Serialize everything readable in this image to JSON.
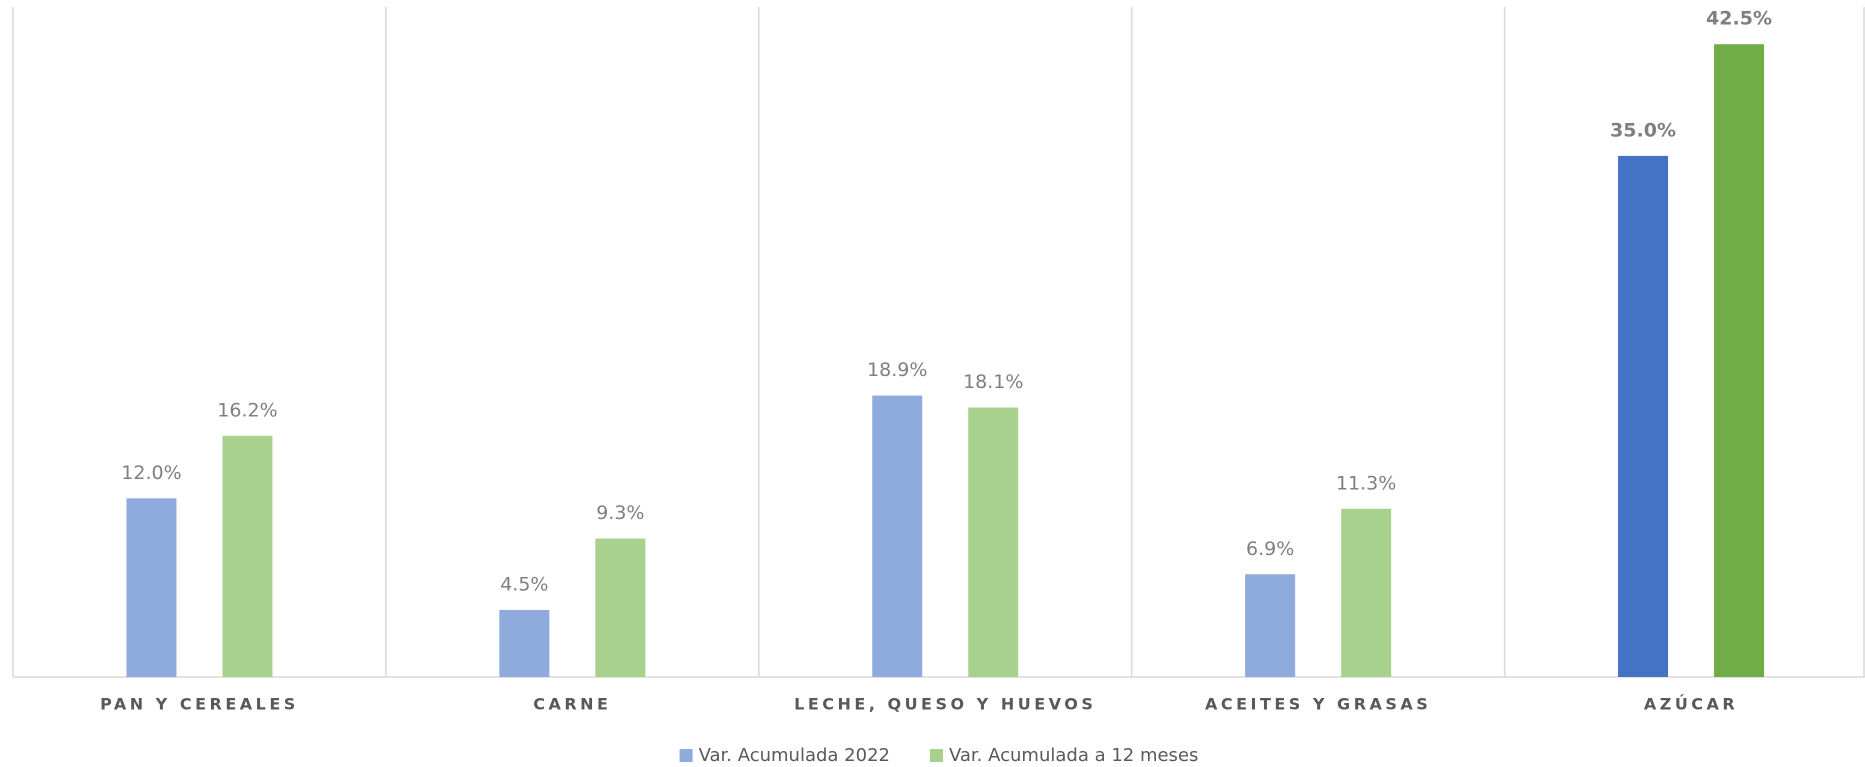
{
  "chart_data": {
    "type": "bar",
    "categories": [
      "PAN Y CEREALES",
      "CARNE",
      "LECHE, QUESO Y HUEVOS",
      "ACEITES Y GRASAS",
      "AZÚCAR"
    ],
    "series": [
      {
        "name": "Var. Acumulada 2022",
        "color": "#8faadc",
        "colors": [
          "#8faadc",
          "#8faadc",
          "#8faadc",
          "#8faadc",
          "#4472c4"
        ],
        "values": [
          12.0,
          4.5,
          18.9,
          6.9,
          35.0
        ],
        "value_labels": [
          "12.0%",
          "4.5%",
          "18.9%",
          "6.9%",
          "35.0%"
        ]
      },
      {
        "name": "Var. Acumulada a 12 meses",
        "color": "#a9d18e",
        "colors": [
          "#a9d18e",
          "#a9d18e",
          "#a9d18e",
          "#a9d18e",
          "#70ad47"
        ],
        "values": [
          16.2,
          9.3,
          18.1,
          11.3,
          42.5
        ],
        "value_labels": [
          "16.2%",
          "9.3%",
          "18.1%",
          "11.3%",
          "42.5%"
        ]
      }
    ],
    "ylim": [
      0,
      45
    ],
    "legend": "bottom"
  }
}
